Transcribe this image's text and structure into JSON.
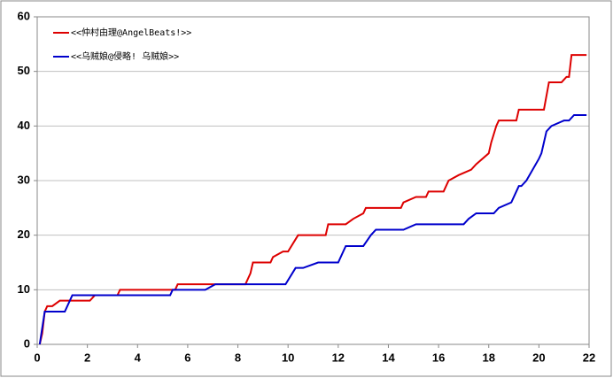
{
  "chart_data": {
    "type": "line",
    "series": [
      {
        "name": "<<仲村由理@AngelBeats!>>",
        "color": "#dd0000",
        "x": [
          0.1,
          0.2,
          0.3,
          0.4,
          0.6,
          0.9,
          2.1,
          2.3,
          3.2,
          3.3,
          5.5,
          5.6,
          8.3,
          8.5,
          8.6,
          9.3,
          9.4,
          9.8,
          10.0,
          10.4,
          11.5,
          11.6,
          12.3,
          12.6,
          13.0,
          13.1,
          14.5,
          14.6,
          15.1,
          15.5,
          15.6,
          16.2,
          16.4,
          16.8,
          17.3,
          17.5,
          18.0,
          18.1,
          18.3,
          18.4,
          19.1,
          19.2,
          20.2,
          20.4,
          20.9,
          21.1,
          21.2,
          21.3,
          21.9
        ],
        "values": [
          0,
          2,
          6,
          7,
          7,
          8,
          8,
          9,
          9,
          10,
          10,
          11,
          11,
          13,
          15,
          15,
          16,
          17,
          17,
          20,
          20,
          22,
          22,
          23,
          24,
          25,
          25,
          26,
          27,
          27,
          28,
          28,
          30,
          31,
          32,
          33,
          35,
          37,
          40,
          41,
          41,
          43,
          43,
          48,
          48,
          49,
          49,
          53,
          53
        ]
      },
      {
        "name": "<<乌贼娘@侵略! 乌贼娘>>",
        "color": "#0000cc",
        "x": [
          0.1,
          0.3,
          1.1,
          1.3,
          1.4,
          2.2,
          5.3,
          5.4,
          6.7,
          7.1,
          9.9,
          10.3,
          10.6,
          11.2,
          12.0,
          12.3,
          13.0,
          13.3,
          13.5,
          14.6,
          15.1,
          17.0,
          17.2,
          17.5,
          18.2,
          18.4,
          18.9,
          19.2,
          19.3,
          19.5,
          20.0,
          20.1,
          20.3,
          20.5,
          21.0,
          21.2,
          21.4,
          21.9
        ],
        "values": [
          0,
          6,
          6,
          8,
          9,
          9,
          9,
          10,
          10,
          11,
          11,
          14,
          14,
          15,
          15,
          18,
          18,
          20,
          21,
          21,
          22,
          22,
          23,
          24,
          24,
          25,
          26,
          29,
          29,
          30,
          34,
          35,
          39,
          40,
          41,
          41,
          42,
          42
        ]
      }
    ],
    "xlim": [
      0,
      22
    ],
    "xticks": [
      0,
      2,
      4,
      6,
      8,
      10,
      12,
      14,
      16,
      18,
      20,
      22
    ],
    "ylim": [
      0,
      60
    ],
    "yticks": [
      0,
      10,
      20,
      30,
      40,
      50,
      60
    ],
    "grid": true,
    "legend": "top-left"
  }
}
